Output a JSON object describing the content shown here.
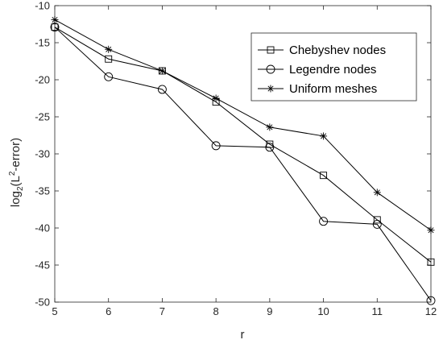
{
  "chart_data": {
    "type": "line",
    "title": "",
    "xlabel": "r",
    "ylabel": {
      "base": "log",
      "sub": "2",
      "paren_open": "(L",
      "sup": "2",
      "rest": "-error)"
    },
    "xlim": [
      5,
      12
    ],
    "ylim": [
      -50,
      -10
    ],
    "x_ticks": [
      5,
      6,
      7,
      8,
      9,
      10,
      11,
      12
    ],
    "y_ticks": [
      -50,
      -45,
      -40,
      -35,
      -30,
      -25,
      -20,
      -15,
      -10
    ],
    "grid": false,
    "legend_position": "top-right",
    "x": [
      5,
      6,
      7,
      8,
      9,
      10,
      11,
      12
    ],
    "series": [
      {
        "name": "Chebyshev nodes",
        "marker": "square",
        "color": "#000000",
        "values": [
          -12.9,
          -17.2,
          -18.8,
          -23.0,
          -28.7,
          -32.9,
          -38.9,
          -44.6
        ]
      },
      {
        "name": "Legendre nodes",
        "marker": "circle",
        "color": "#000000",
        "values": [
          -12.9,
          -19.6,
          -21.3,
          -28.9,
          -29.1,
          -39.1,
          -39.5,
          -49.8
        ]
      },
      {
        "name": "Uniform meshes",
        "marker": "asterisk",
        "color": "#000000",
        "values": [
          -11.9,
          -15.9,
          -18.8,
          -22.5,
          -26.4,
          -27.6,
          -35.2,
          -40.3
        ]
      }
    ]
  }
}
